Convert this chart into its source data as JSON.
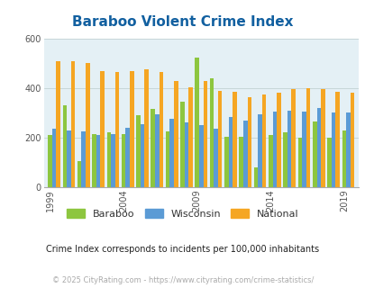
{
  "title": "Baraboo Violent Crime Index",
  "title_color": "#1260a0",
  "subtitle": "Crime Index corresponds to incidents per 100,000 inhabitants",
  "footer": "© 2025 CityRating.com - https://www.cityrating.com/crime-statistics/",
  "years": [
    1999,
    2000,
    2001,
    2002,
    2003,
    2004,
    2005,
    2006,
    2007,
    2008,
    2009,
    2010,
    2011,
    2012,
    2013,
    2014,
    2015,
    2016,
    2017,
    2018,
    2019
  ],
  "baraboo": [
    210,
    330,
    105,
    215,
    220,
    215,
    290,
    315,
    225,
    345,
    525,
    440,
    205,
    205,
    80,
    210,
    220,
    200,
    265,
    200,
    230
  ],
  "wisconsin": [
    235,
    230,
    225,
    210,
    215,
    240,
    255,
    295,
    275,
    260,
    250,
    235,
    285,
    270,
    295,
    305,
    310,
    305,
    320,
    300,
    300
  ],
  "national": [
    510,
    510,
    500,
    470,
    465,
    470,
    475,
    465,
    430,
    405,
    430,
    390,
    385,
    365,
    375,
    380,
    395,
    400,
    395,
    385,
    380
  ],
  "bar_colors": {
    "baraboo": "#8dc63f",
    "wisconsin": "#5b9bd5",
    "national": "#f5a623"
  },
  "bg_color": "#e4f0f5",
  "ylim": [
    0,
    600
  ],
  "yticks": [
    0,
    200,
    400,
    600
  ],
  "grid_color": "#bbcccc",
  "subtitle_color": "#222222",
  "footer_color": "#aaaaaa",
  "tick_label_color": "#555555"
}
